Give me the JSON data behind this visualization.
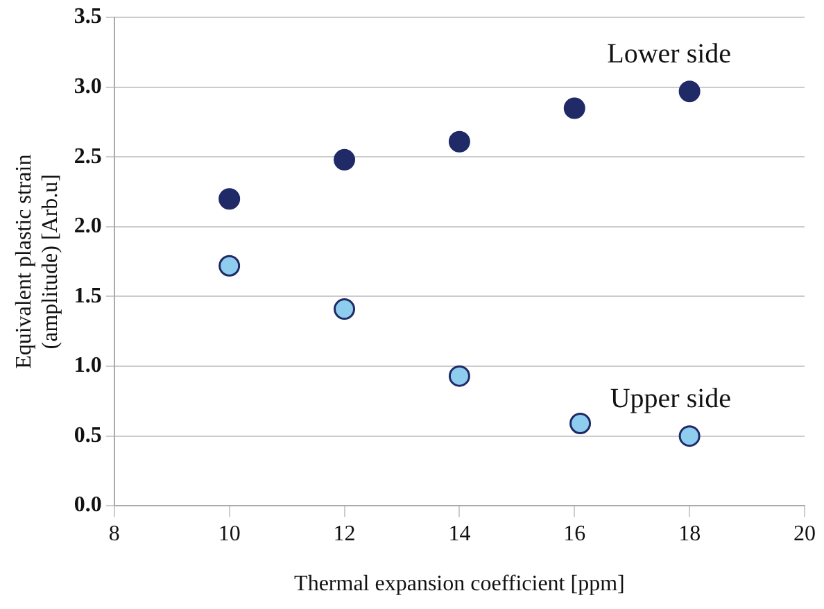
{
  "chart_data": {
    "type": "scatter",
    "xlabel": "Thermal expansion coefficient [ppm]",
    "ylabel": "Equivalent plastic strain\n(amplitude) [Arb.u]",
    "xlim": [
      8,
      20
    ],
    "xticks": [
      8,
      10,
      12,
      14,
      16,
      18,
      20
    ],
    "ylim": [
      0,
      3.5
    ],
    "yticks": [
      {
        "value": 0,
        "label": "0.0"
      },
      {
        "value": 0.5,
        "label": "0.5"
      },
      {
        "value": 1,
        "label": "1.0"
      },
      {
        "value": 1.5,
        "label": "1.5"
      },
      {
        "value": 2,
        "label": "2.0"
      },
      {
        "value": 2.5,
        "label": "2.5"
      },
      {
        "value": 3,
        "label": "3.0"
      },
      {
        "value": 3.5,
        "label": "3.5"
      }
    ],
    "grid": "y",
    "legend": false,
    "marker": "circle",
    "series": [
      {
        "name": "Lower side",
        "color": "#1f2a66",
        "x": [
          10,
          12,
          14,
          16,
          18
        ],
        "values": [
          2.2,
          2.48,
          2.61,
          2.85,
          2.97
        ]
      },
      {
        "name": "Upper side",
        "color": "#8ecdee",
        "x": [
          10,
          12,
          14,
          16.1,
          18
        ],
        "values": [
          1.72,
          1.41,
          0.93,
          0.59,
          0.5
        ]
      }
    ]
  }
}
